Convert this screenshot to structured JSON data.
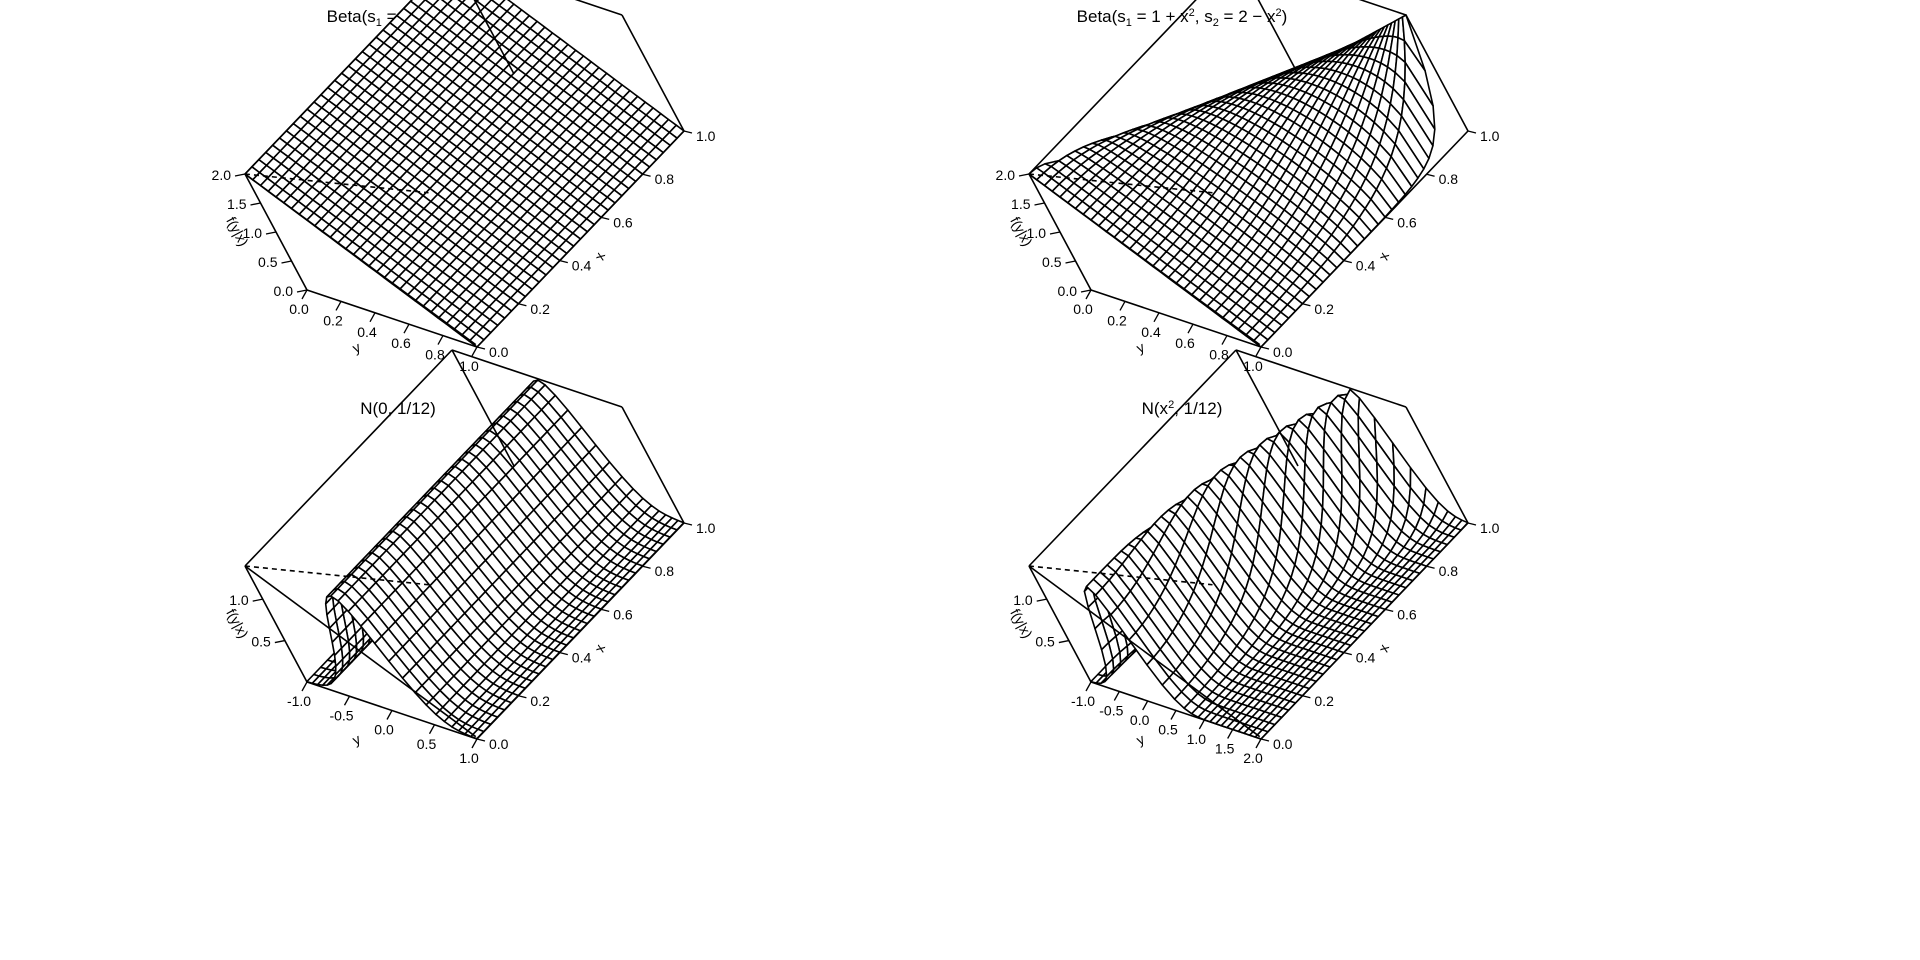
{
  "chart_data": [
    {
      "type": "surface",
      "title": "Beta(s₁ = 1, s₂ = 2)",
      "title_parts": [
        "Beta(s",
        "1",
        " = 1, s",
        "2",
        " = 2)"
      ],
      "density": "beta",
      "params": {
        "s1": "1",
        "s2": "2"
      },
      "xlabel": "x",
      "ylabel": "y",
      "zlabel": "f(y|x)",
      "xlim": [
        0,
        1
      ],
      "ylim": [
        0,
        1
      ],
      "zlim": [
        0,
        2
      ],
      "x_ticks": [
        "0.0",
        "0.2",
        "0.4",
        "0.6",
        "0.8",
        "1.0"
      ],
      "y_ticks": [
        "0.0",
        "0.2",
        "0.4",
        "0.6",
        "0.8",
        "1.0"
      ],
      "z_ticks": [
        "0.0",
        "0.5",
        "1.0",
        "1.5",
        "2.0"
      ]
    },
    {
      "type": "surface",
      "title": "Beta(s₁ = 1 + x², s₂ = 2 − x²)",
      "title_parts": [
        "Beta(s",
        "1",
        " = 1 + x",
        "2",
        ", s",
        "2",
        " = 2 − x",
        "2",
        ")"
      ],
      "density": "beta_x",
      "params": {
        "s1": "1 + x^2",
        "s2": "2 - x^2"
      },
      "xlabel": "x",
      "ylabel": "y",
      "zlabel": "f(y|x)",
      "xlim": [
        0,
        1
      ],
      "ylim": [
        0,
        1
      ],
      "zlim": [
        0,
        2
      ],
      "x_ticks": [
        "0.0",
        "0.2",
        "0.4",
        "0.6",
        "0.8",
        "1.0"
      ],
      "y_ticks": [
        "0.0",
        "0.2",
        "0.4",
        "0.6",
        "0.8",
        "1.0"
      ],
      "z_ticks": [
        "0.0",
        "0.5",
        "1.0",
        "1.5",
        "2.0"
      ]
    },
    {
      "type": "surface",
      "title": "N(0, 1/12)",
      "title_parts": [
        "N(0, 1/12)"
      ],
      "density": "normal",
      "params": {
        "mean": "0",
        "variance": "1/12"
      },
      "xlabel": "x",
      "ylabel": "y",
      "zlabel": "f(y|x)",
      "xlim": [
        0,
        1
      ],
      "ylim": [
        -1,
        1
      ],
      "zlim": [
        0,
        1.4
      ],
      "x_ticks": [
        "0.0",
        "0.2",
        "0.4",
        "0.6",
        "0.8",
        "1.0"
      ],
      "y_ticks": [
        "-1.0",
        "-0.5",
        "0.0",
        "0.5",
        "1.0"
      ],
      "z_ticks": [
        "0.5",
        "1.0"
      ]
    },
    {
      "type": "surface",
      "title": "N(x², 1/12)",
      "title_parts": [
        "N(x",
        "2",
        ", 1/12)"
      ],
      "density": "normal_x",
      "params": {
        "mean": "x^2",
        "variance": "1/12"
      },
      "xlabel": "x",
      "ylabel": "y",
      "zlabel": "f(y|x)",
      "xlim": [
        0,
        1
      ],
      "ylim": [
        -1,
        2
      ],
      "zlim": [
        0,
        1.4
      ],
      "x_ticks": [
        "0.0",
        "0.2",
        "0.4",
        "0.6",
        "0.8",
        "1.0"
      ],
      "y_ticks": [
        "-1.0",
        "-0.5",
        "0.0",
        "0.5",
        "1.0",
        "1.5",
        "2.0"
      ],
      "z_ticks": [
        "0.5",
        "1.0"
      ]
    }
  ]
}
